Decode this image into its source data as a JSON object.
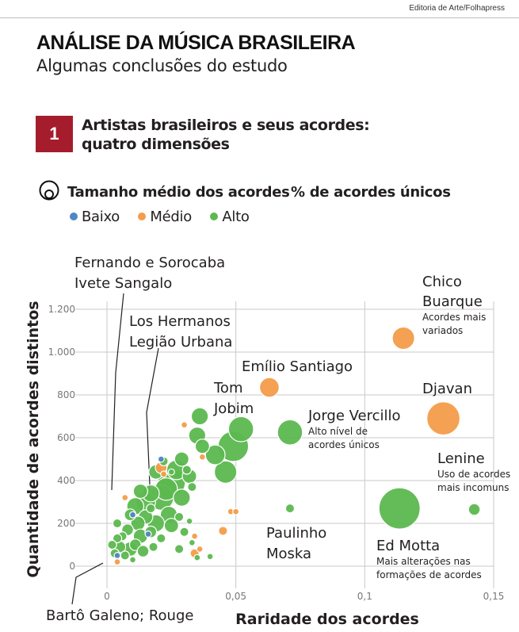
{
  "credit": "Editoria de Arte/Folhapress",
  "title": "ANÁLISE DA MÚSICA BRASILEIRA",
  "subtitle": "Algumas conclusões do estudo",
  "section": {
    "number": "1",
    "title": "Artistas brasileiros e seus acordes: quatro dimensões"
  },
  "legend": {
    "size_label": "Tamanho médio dos acordes",
    "pct_label": "% de acordes únicos",
    "items": [
      {
        "label": "Baixo",
        "color": "#4f87c4"
      },
      {
        "label": "Médio",
        "color": "#f39c4a"
      },
      {
        "label": "Alto",
        "color": "#5cb84f"
      }
    ]
  },
  "chart_data": {
    "type": "scatter",
    "xlabel": "Raridade dos acordes",
    "ylabel": "Quantidade de acordes distintos",
    "xlim": [
      0,
      0.15
    ],
    "ylim": [
      0,
      1200
    ],
    "x_ticks": [
      0,
      0.05,
      0.1,
      0.15
    ],
    "x_tick_labels": [
      "0",
      "0,05",
      "0,1",
      "0,15"
    ],
    "y_ticks": [
      0,
      200,
      400,
      600,
      800,
      1000,
      1200
    ],
    "y_tick_labels": [
      "0",
      "200",
      "400",
      "600",
      "800",
      "1.000",
      "1.200"
    ],
    "grid": true,
    "colors": {
      "Baixo": "#4f87c4",
      "Médio": "#f39c4a",
      "Alto": "#5cb84f"
    },
    "highlighted": [
      {
        "name": "Chico Buarque",
        "x": 0.115,
        "y": 1065,
        "size": 8,
        "cat": "Médio"
      },
      {
        "name": "Emílio Santiago",
        "x": 0.063,
        "y": 835,
        "size": 7,
        "cat": "Médio"
      },
      {
        "name": "Djavan",
        "x": 0.1305,
        "y": 690,
        "size": 12,
        "cat": "Médio"
      },
      {
        "name": "Tom Jobim",
        "x": 0.052,
        "y": 640,
        "size": 9,
        "cat": "Alto"
      },
      {
        "name": "Jorge Vercillo",
        "x": 0.071,
        "y": 625,
        "size": 9,
        "cat": "Alto"
      },
      {
        "name": "Ed Motta",
        "x": 0.1135,
        "y": 270,
        "size": 15,
        "cat": "Alto"
      },
      {
        "name": "Lenine",
        "x": 0.1425,
        "y": 265,
        "size": 4,
        "cat": "Alto"
      },
      {
        "name": "Paulinho Moska",
        "x": 0.071,
        "y": 270,
        "size": 3,
        "cat": "Alto"
      }
    ],
    "others": [
      {
        "x": 0.049,
        "y": 560,
        "size": 11,
        "cat": "Alto"
      },
      {
        "x": 0.046,
        "y": 440,
        "size": 8,
        "cat": "Alto"
      },
      {
        "x": 0.042,
        "y": 520,
        "size": 7,
        "cat": "Alto"
      },
      {
        "x": 0.036,
        "y": 700,
        "size": 6,
        "cat": "Alto"
      },
      {
        "x": 0.035,
        "y": 610,
        "size": 6,
        "cat": "Alto"
      },
      {
        "x": 0.037,
        "y": 560,
        "size": 5,
        "cat": "Alto"
      },
      {
        "x": 0.029,
        "y": 500,
        "size": 5,
        "cat": "Alto"
      },
      {
        "x": 0.027,
        "y": 450,
        "size": 7,
        "cat": "Alto"
      },
      {
        "x": 0.025,
        "y": 390,
        "size": 10,
        "cat": "Alto"
      },
      {
        "x": 0.023,
        "y": 360,
        "size": 8,
        "cat": "Alto"
      },
      {
        "x": 0.021,
        "y": 320,
        "size": 9,
        "cat": "Alto"
      },
      {
        "x": 0.029,
        "y": 320,
        "size": 6,
        "cat": "Alto"
      },
      {
        "x": 0.032,
        "y": 420,
        "size": 5,
        "cat": "Alto"
      },
      {
        "x": 0.019,
        "y": 440,
        "size": 5,
        "cat": "Alto"
      },
      {
        "x": 0.017,
        "y": 340,
        "size": 6,
        "cat": "Alto"
      },
      {
        "x": 0.015,
        "y": 300,
        "size": 7,
        "cat": "Alto"
      },
      {
        "x": 0.013,
        "y": 350,
        "size": 5,
        "cat": "Alto"
      },
      {
        "x": 0.011,
        "y": 280,
        "size": 6,
        "cat": "Alto"
      },
      {
        "x": 0.015,
        "y": 230,
        "size": 5,
        "cat": "Alto"
      },
      {
        "x": 0.024,
        "y": 240,
        "size": 6,
        "cat": "Alto"
      },
      {
        "x": 0.025,
        "y": 190,
        "size": 5,
        "cat": "Alto"
      },
      {
        "x": 0.019,
        "y": 200,
        "size": 6,
        "cat": "Alto"
      },
      {
        "x": 0.009,
        "y": 240,
        "size": 4,
        "cat": "Alto"
      },
      {
        "x": 0.012,
        "y": 200,
        "size": 5,
        "cat": "Alto"
      },
      {
        "x": 0.008,
        "y": 170,
        "size": 4,
        "cat": "Alto"
      },
      {
        "x": 0.006,
        "y": 140,
        "size": 3,
        "cat": "Alto"
      },
      {
        "x": 0.017,
        "y": 160,
        "size": 4,
        "cat": "Alto"
      },
      {
        "x": 0.013,
        "y": 140,
        "size": 5,
        "cat": "Alto"
      },
      {
        "x": 0.011,
        "y": 100,
        "size": 4,
        "cat": "Alto"
      },
      {
        "x": 0.009,
        "y": 80,
        "size": 5,
        "cat": "Alto"
      },
      {
        "x": 0.005,
        "y": 90,
        "size": 4,
        "cat": "Alto"
      },
      {
        "x": 0.004,
        "y": 130,
        "size": 3,
        "cat": "Alto"
      },
      {
        "x": 0.003,
        "y": 60,
        "size": 3,
        "cat": "Alto"
      },
      {
        "x": 0.007,
        "y": 50,
        "size": 3,
        "cat": "Alto"
      },
      {
        "x": 0.014,
        "y": 70,
        "size": 4,
        "cat": "Alto"
      },
      {
        "x": 0.018,
        "y": 90,
        "size": 3,
        "cat": "Alto"
      },
      {
        "x": 0.021,
        "y": 130,
        "size": 3,
        "cat": "Alto"
      },
      {
        "x": 0.004,
        "y": 200,
        "size": 3,
        "cat": "Alto"
      },
      {
        "x": 0.028,
        "y": 230,
        "size": 3,
        "cat": "Alto"
      },
      {
        "x": 0.03,
        "y": 160,
        "size": 3,
        "cat": "Alto"
      },
      {
        "x": 0.028,
        "y": 80,
        "size": 3,
        "cat": "Alto"
      },
      {
        "x": 0.033,
        "y": 110,
        "size": 2,
        "cat": "Alto"
      },
      {
        "x": 0.035,
        "y": 40,
        "size": 2,
        "cat": "Alto"
      },
      {
        "x": 0.04,
        "y": 45,
        "size": 2,
        "cat": "Alto"
      },
      {
        "x": 0.032,
        "y": 210,
        "size": 2,
        "cat": "Alto"
      },
      {
        "x": 0.033,
        "y": 370,
        "size": 3,
        "cat": "Alto"
      },
      {
        "x": 0.022,
        "y": 490,
        "size": 3,
        "cat": "Alto"
      },
      {
        "x": 0.031,
        "y": 450,
        "size": 3,
        "cat": "Alto"
      },
      {
        "x": 0.025,
        "y": 440,
        "size": 2,
        "cat": "Alto"
      },
      {
        "x": 0.017,
        "y": 270,
        "size": 3,
        "cat": "Alto"
      },
      {
        "x": 0.002,
        "y": 100,
        "size": 3,
        "cat": "Alto"
      },
      {
        "x": 0.01,
        "y": 30,
        "size": 2,
        "cat": "Alto"
      },
      {
        "x": 0.021,
        "y": 460,
        "size": 4,
        "cat": "Médio"
      },
      {
        "x": 0.03,
        "y": 660,
        "size": 2,
        "cat": "Médio"
      },
      {
        "x": 0.037,
        "y": 510,
        "size": 2,
        "cat": "Médio"
      },
      {
        "x": 0.048,
        "y": 255,
        "size": 2,
        "cat": "Médio"
      },
      {
        "x": 0.05,
        "y": 255,
        "size": 2,
        "cat": "Médio"
      },
      {
        "x": 0.045,
        "y": 165,
        "size": 3,
        "cat": "Médio"
      },
      {
        "x": 0.034,
        "y": 60,
        "size": 3,
        "cat": "Médio"
      },
      {
        "x": 0.034,
        "y": 140,
        "size": 2,
        "cat": "Médio"
      },
      {
        "x": 0.036,
        "y": 80,
        "size": 2,
        "cat": "Médio"
      },
      {
        "x": 0.007,
        "y": 320,
        "size": 2,
        "cat": "Médio"
      },
      {
        "x": 0.022,
        "y": 430,
        "size": 2,
        "cat": "Médio"
      },
      {
        "x": 0.004,
        "y": 20,
        "size": 2,
        "cat": "Médio"
      },
      {
        "x": 0.021,
        "y": 500,
        "size": 2,
        "cat": "Baixo"
      },
      {
        "x": 0.01,
        "y": 240,
        "size": 2,
        "cat": "Baixo"
      },
      {
        "x": 0.004,
        "y": 50,
        "size": 2,
        "cat": "Baixo"
      },
      {
        "x": 0.016,
        "y": 150,
        "size": 2,
        "cat": "Baixo"
      }
    ],
    "annotations": [
      {
        "key": "fernando",
        "lines": [
          "Fernando e Sorocaba",
          "Ivete Sangalo"
        ]
      },
      {
        "key": "hermanos",
        "lines": [
          "Los Hermanos",
          "Legião Urbana"
        ]
      },
      {
        "key": "emilio",
        "lines": [
          "Emílio Santiago"
        ]
      },
      {
        "key": "tom",
        "lines": [
          "Tom",
          "Jobim"
        ]
      },
      {
        "key": "chico",
        "lines": [
          "Chico",
          "Buarque"
        ],
        "note": [
          "Acordes mais",
          "variados"
        ]
      },
      {
        "key": "djavan",
        "lines": [
          "Djavan"
        ]
      },
      {
        "key": "jorge",
        "lines": [
          "Jorge Vercillo"
        ],
        "note": [
          "Alto nível de",
          "acordes únicos"
        ]
      },
      {
        "key": "lenine",
        "lines": [
          "Lenine"
        ],
        "note": [
          "Uso de acordes",
          "mais incomuns"
        ]
      },
      {
        "key": "moska",
        "lines": [
          "Paulinho",
          "Moska"
        ]
      },
      {
        "key": "edmotta",
        "lines": [
          "Ed Motta"
        ],
        "note": [
          "Mais alterações nas",
          "formações de acordes"
        ]
      },
      {
        "key": "barto",
        "lines": [
          "Bartô Galeno; Rouge"
        ]
      }
    ]
  }
}
